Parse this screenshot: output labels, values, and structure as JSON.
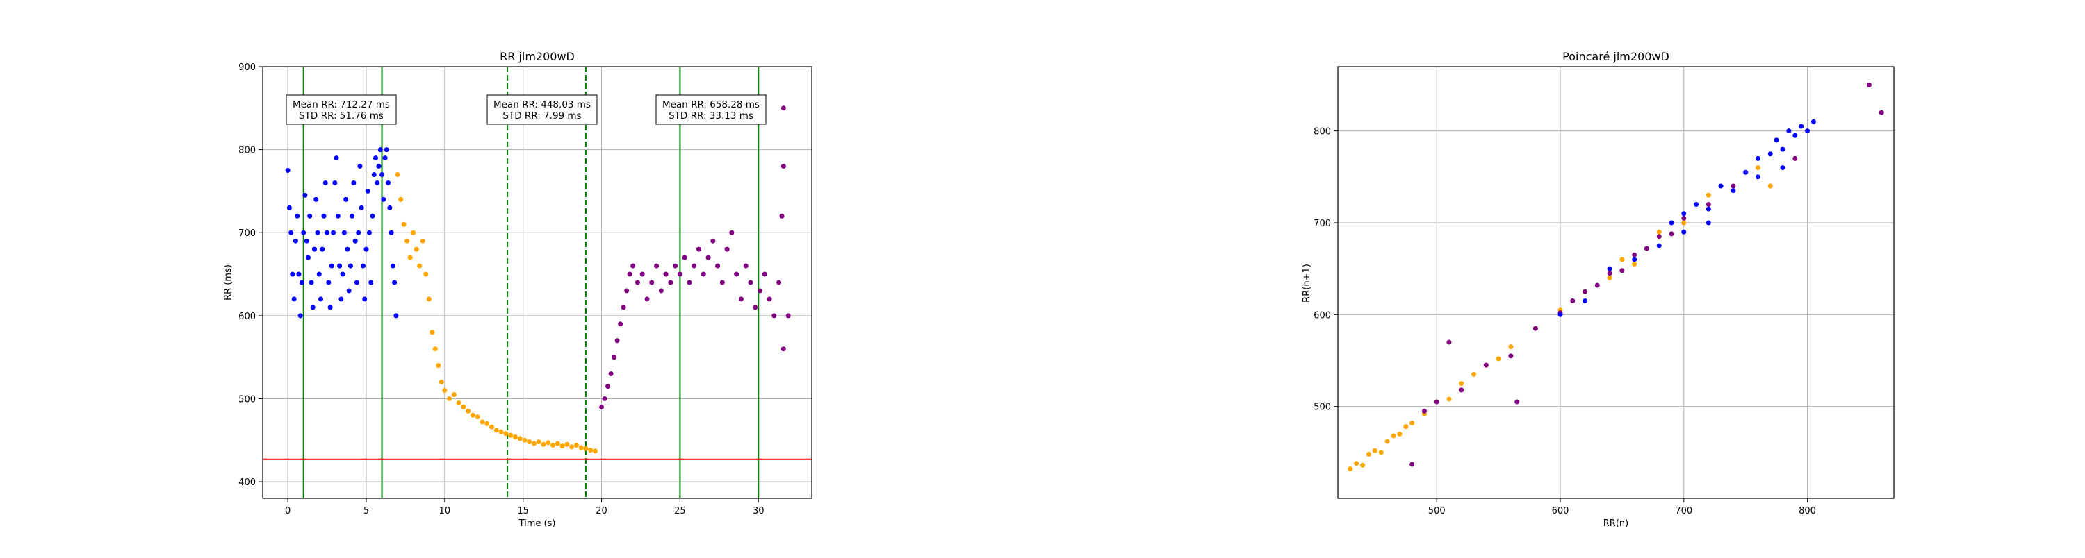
{
  "colors": {
    "rest": "#0000ff",
    "exercise": "#ffa500",
    "recovery": "#800080",
    "boundary": "#008000",
    "threshold": "#ff0000",
    "grid": "#b0b0b0"
  },
  "chart_data": [
    {
      "type": "scatter",
      "title": "RR jlm200wD",
      "xlabel": "Time (s)",
      "ylabel": "RR (ms)",
      "xlim": [
        -1.6,
        33.4
      ],
      "ylim": [
        380,
        900
      ],
      "xticks": [
        "0",
        "5",
        "10",
        "15",
        "20",
        "25",
        "30"
      ],
      "yticks": [
        "400",
        "500",
        "600",
        "700",
        "800",
        "900"
      ],
      "grid": true,
      "series": [
        {
          "color_key": "rest",
          "points": [
            [
              0.0,
              775
            ],
            [
              0.1,
              730
            ],
            [
              0.2,
              700
            ],
            [
              0.3,
              650
            ],
            [
              0.4,
              620
            ],
            [
              0.5,
              690
            ],
            [
              0.6,
              720
            ],
            [
              0.7,
              650
            ],
            [
              0.8,
              600
            ],
            [
              0.9,
              640
            ],
            [
              1.0,
              700
            ],
            [
              1.1,
              745
            ],
            [
              1.2,
              690
            ],
            [
              1.3,
              670
            ],
            [
              1.4,
              720
            ],
            [
              1.5,
              640
            ],
            [
              1.6,
              610
            ],
            [
              1.7,
              680
            ],
            [
              1.8,
              740
            ],
            [
              1.9,
              700
            ],
            [
              2.0,
              650
            ],
            [
              2.1,
              620
            ],
            [
              2.2,
              680
            ],
            [
              2.3,
              720
            ],
            [
              2.4,
              760
            ],
            [
              2.5,
              700
            ],
            [
              2.6,
              640
            ],
            [
              2.7,
              610
            ],
            [
              2.8,
              660
            ],
            [
              2.9,
              700
            ],
            [
              3.0,
              760
            ],
            [
              3.1,
              790
            ],
            [
              3.2,
              720
            ],
            [
              3.3,
              660
            ],
            [
              3.4,
              620
            ],
            [
              3.5,
              650
            ],
            [
              3.6,
              700
            ],
            [
              3.7,
              740
            ],
            [
              3.8,
              680
            ],
            [
              3.9,
              630
            ],
            [
              4.0,
              660
            ],
            [
              4.1,
              720
            ],
            [
              4.2,
              760
            ],
            [
              4.3,
              690
            ],
            [
              4.4,
              640
            ],
            [
              4.5,
              700
            ],
            [
              4.6,
              780
            ],
            [
              4.7,
              730
            ],
            [
              4.8,
              660
            ],
            [
              4.9,
              620
            ],
            [
              5.0,
              680
            ],
            [
              5.1,
              750
            ],
            [
              5.2,
              700
            ],
            [
              5.3,
              640
            ],
            [
              5.4,
              720
            ],
            [
              5.5,
              770
            ],
            [
              5.6,
              790
            ],
            [
              5.7,
              760
            ],
            [
              5.8,
              780
            ],
            [
              5.9,
              800
            ],
            [
              6.0,
              770
            ],
            [
              6.1,
              740
            ],
            [
              6.2,
              790
            ],
            [
              6.3,
              800
            ],
            [
              6.4,
              760
            ],
            [
              6.5,
              730
            ],
            [
              6.6,
              700
            ],
            [
              6.7,
              660
            ],
            [
              6.8,
              640
            ],
            [
              6.9,
              600
            ]
          ]
        },
        {
          "color_key": "exercise",
          "points": [
            [
              7.0,
              770
            ],
            [
              7.2,
              740
            ],
            [
              7.4,
              710
            ],
            [
              7.6,
              690
            ],
            [
              7.8,
              670
            ],
            [
              8.0,
              700
            ],
            [
              8.2,
              680
            ],
            [
              8.4,
              660
            ],
            [
              8.6,
              690
            ],
            [
              8.8,
              650
            ],
            [
              9.0,
              620
            ],
            [
              9.2,
              580
            ],
            [
              9.4,
              560
            ],
            [
              9.6,
              540
            ],
            [
              9.8,
              520
            ],
            [
              10.0,
              510
            ],
            [
              10.3,
              500
            ],
            [
              10.6,
              505
            ],
            [
              10.9,
              495
            ],
            [
              11.2,
              490
            ],
            [
              11.5,
              485
            ],
            [
              11.8,
              480
            ],
            [
              12.1,
              478
            ],
            [
              12.4,
              472
            ],
            [
              12.7,
              470
            ],
            [
              13.0,
              466
            ],
            [
              13.3,
              462
            ],
            [
              13.6,
              460
            ],
            [
              13.9,
              458
            ],
            [
              14.2,
              456
            ],
            [
              14.5,
              454
            ],
            [
              14.8,
              452
            ],
            [
              15.1,
              450
            ],
            [
              15.4,
              448
            ],
            [
              15.7,
              446
            ],
            [
              16.0,
              448
            ],
            [
              16.3,
              445
            ],
            [
              16.6,
              447
            ],
            [
              16.9,
              444
            ],
            [
              17.2,
              446
            ],
            [
              17.5,
              443
            ],
            [
              17.8,
              445
            ],
            [
              18.1,
              442
            ],
            [
              18.4,
              444
            ],
            [
              18.7,
              441
            ],
            [
              19.0,
              440
            ],
            [
              19.3,
              438
            ],
            [
              19.6,
              437
            ]
          ]
        },
        {
          "color_key": "recovery",
          "points": [
            [
              20.0,
              490
            ],
            [
              20.2,
              500
            ],
            [
              20.4,
              515
            ],
            [
              20.6,
              530
            ],
            [
              20.8,
              550
            ],
            [
              21.0,
              570
            ],
            [
              21.2,
              590
            ],
            [
              21.4,
              610
            ],
            [
              21.6,
              630
            ],
            [
              21.8,
              650
            ],
            [
              22.0,
              660
            ],
            [
              22.3,
              640
            ],
            [
              22.6,
              650
            ],
            [
              22.9,
              620
            ],
            [
              23.2,
              640
            ],
            [
              23.5,
              660
            ],
            [
              23.8,
              630
            ],
            [
              24.1,
              650
            ],
            [
              24.4,
              640
            ],
            [
              24.7,
              660
            ],
            [
              25.0,
              650
            ],
            [
              25.3,
              670
            ],
            [
              25.6,
              640
            ],
            [
              25.9,
              660
            ],
            [
              26.2,
              680
            ],
            [
              26.5,
              650
            ],
            [
              26.8,
              670
            ],
            [
              27.1,
              690
            ],
            [
              27.4,
              660
            ],
            [
              27.7,
              640
            ],
            [
              28.0,
              680
            ],
            [
              28.3,
              700
            ],
            [
              28.6,
              650
            ],
            [
              28.9,
              620
            ],
            [
              29.2,
              660
            ],
            [
              29.5,
              640
            ],
            [
              29.8,
              610
            ],
            [
              30.1,
              630
            ],
            [
              30.4,
              650
            ],
            [
              30.7,
              620
            ],
            [
              31.0,
              600
            ],
            [
              31.3,
              640
            ],
            [
              31.6,
              560
            ],
            [
              31.9,
              600
            ],
            [
              31.6,
              850
            ],
            [
              31.6,
              780
            ],
            [
              31.5,
              720
            ]
          ]
        }
      ],
      "boundaries": [
        {
          "x": 1,
          "style": "solid"
        },
        {
          "x": 6,
          "style": "solid"
        },
        {
          "x": 14,
          "style": "dashed"
        },
        {
          "x": 19,
          "style": "dashed"
        },
        {
          "x": 25,
          "style": "solid"
        },
        {
          "x": 30,
          "style": "solid"
        }
      ],
      "threshold_y": 427,
      "annotations": [
        {
          "x": 3.5,
          "y": 848,
          "line1": "Mean RR: 712.27 ms",
          "line2": "STD RR: 51.76 ms"
        },
        {
          "x": 16.5,
          "y": 848,
          "line1": "Mean RR: 448.03 ms",
          "line2": "STD RR: 7.99 ms"
        },
        {
          "x": 27.5,
          "y": 848,
          "line1": "Mean RR: 658.28 ms",
          "line2": "STD RR: 33.13 ms"
        }
      ]
    },
    {
      "type": "scatter",
      "title": "Poincaré jlm200wD",
      "xlabel": "RR(n)",
      "ylabel": "RR(n+1)",
      "xlim": [
        420,
        870
      ],
      "ylim": [
        400,
        870
      ],
      "xticks": [
        "500",
        "600",
        "700",
        "800"
      ],
      "yticks": [
        "500",
        "600",
        "700",
        "800"
      ],
      "grid": true,
      "series": [
        {
          "color_key": "exercise",
          "points": [
            [
              430,
              432
            ],
            [
              435,
              438
            ],
            [
              440,
              436
            ],
            [
              445,
              448
            ],
            [
              450,
              452
            ],
            [
              455,
              450
            ],
            [
              460,
              462
            ],
            [
              465,
              468
            ],
            [
              470,
              470
            ],
            [
              475,
              478
            ],
            [
              480,
              482
            ],
            [
              490,
              492
            ],
            [
              500,
              505
            ],
            [
              510,
              508
            ],
            [
              520,
              525
            ],
            [
              530,
              535
            ],
            [
              540,
              545
            ],
            [
              550,
              552
            ],
            [
              560,
              565
            ],
            [
              580,
              585
            ],
            [
              600,
              605
            ],
            [
              620,
              625
            ],
            [
              640,
              640
            ],
            [
              650,
              660
            ],
            [
              660,
              655
            ],
            [
              680,
              690
            ],
            [
              700,
              700
            ],
            [
              720,
              730
            ],
            [
              760,
              760
            ],
            [
              770,
              740
            ]
          ]
        },
        {
          "color_key": "recovery",
          "points": [
            [
              490,
              495
            ],
            [
              500,
              505
            ],
            [
              520,
              518
            ],
            [
              540,
              545
            ],
            [
              560,
              555
            ],
            [
              580,
              585
            ],
            [
              600,
              602
            ],
            [
              610,
              615
            ],
            [
              620,
              625
            ],
            [
              630,
              632
            ],
            [
              640,
              645
            ],
            [
              650,
              648
            ],
            [
              660,
              665
            ],
            [
              670,
              672
            ],
            [
              680,
              685
            ],
            [
              690,
              688
            ],
            [
              700,
              705
            ],
            [
              720,
              720
            ],
            [
              740,
              740
            ],
            [
              480,
              437
            ],
            [
              565,
              505
            ],
            [
              850,
              850
            ],
            [
              860,
              820
            ],
            [
              790,
              770
            ],
            [
              510,
              570
            ]
          ]
        },
        {
          "color_key": "rest",
          "points": [
            [
              600,
              600
            ],
            [
              620,
              615
            ],
            [
              640,
              650
            ],
            [
              660,
              660
            ],
            [
              680,
              675
            ],
            [
              690,
              700
            ],
            [
              700,
              690
            ],
            [
              710,
              720
            ],
            [
              720,
              715
            ],
            [
              730,
              740
            ],
            [
              740,
              735
            ],
            [
              750,
              755
            ],
            [
              760,
              750
            ],
            [
              770,
              775
            ],
            [
              775,
              790
            ],
            [
              780,
              780
            ],
            [
              785,
              800
            ],
            [
              790,
              795
            ],
            [
              795,
              805
            ],
            [
              800,
              800
            ],
            [
              805,
              810
            ],
            [
              780,
              760
            ],
            [
              760,
              770
            ],
            [
              720,
              700
            ],
            [
              700,
              710
            ]
          ]
        }
      ]
    }
  ]
}
